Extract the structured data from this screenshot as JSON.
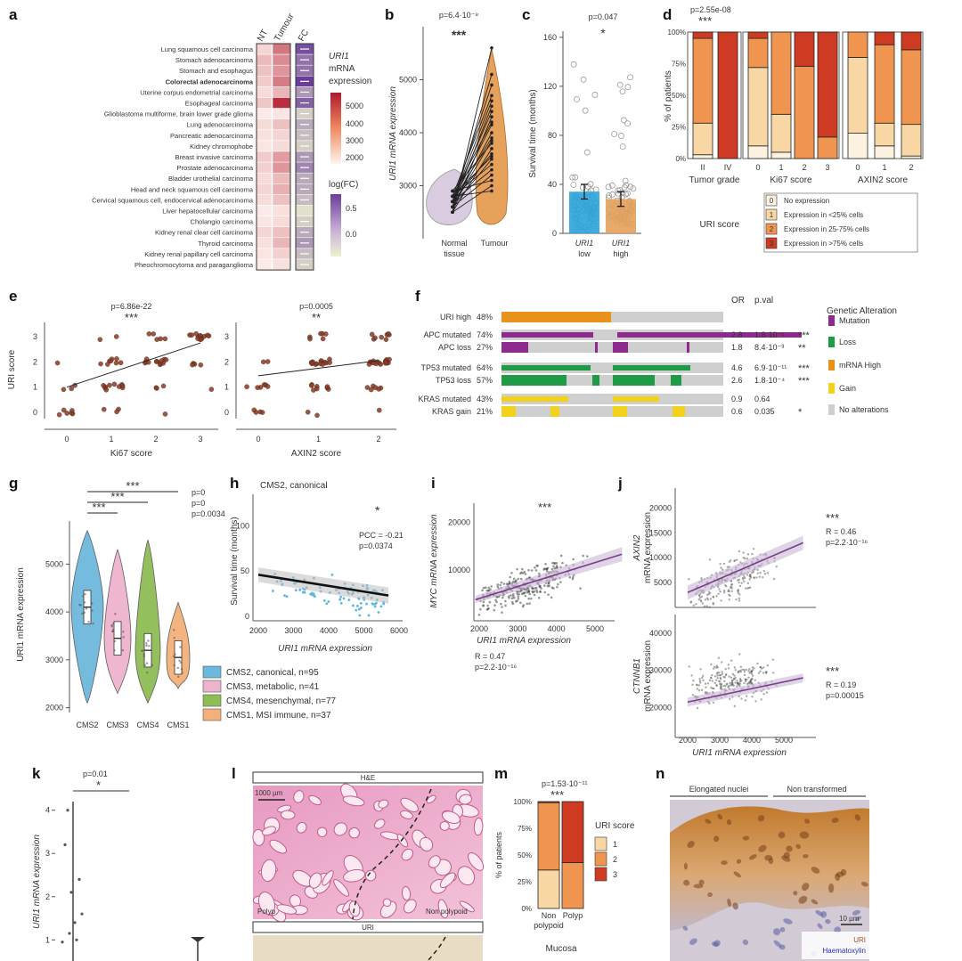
{
  "figure": {
    "colors": {
      "grade0": "#fdf2df",
      "grade1": "#f9d7a4",
      "grade2": "#f0954f",
      "grade3": "#cf3a22",
      "cms2": "#6db8dd",
      "cms3": "#eeb3cd",
      "cms4": "#8fbc55",
      "cms1": "#f4b07a",
      "mutation": "#8e2a8e",
      "loss": "#1f9a47",
      "mrna": "#e8911b",
      "gain": "#f2d21c",
      "none": "#cfcfcf",
      "fit": "#7a3d8a"
    }
  },
  "chart_data": [
    {
      "panel": "a",
      "type": "heatmap",
      "rows": [
        "Lung squamous cell carcinoma",
        "Stomach adenocarcinoma",
        "Stomach and esophagus",
        "Colorectal adenocarcinoma",
        "Uterine corpus endometrial carcinoma",
        "Esophageal carcinoma",
        "Glioblastoma multiforme, brain lower grade glioma",
        "Lung adenocarcinoma",
        "Pancreatic adenocarcinoma",
        "Kidney chromophobe",
        "Breast invasive carcinoma",
        "Prostate adenocarcinoma",
        "Bladder urothelial carcinoma",
        "Head and neck squamous cell carcinoma",
        "Cervical squamous cell, endocervical adenocarcinoma",
        "Liver hepatocellular carcinoma",
        "Cholangio carcinoma",
        "Kidney renal clear cell carcinoma",
        "Thyroid carcinoma",
        "Kidney renal papillary cell carcinoma",
        "Pheochromocytoma and paraganglioma"
      ],
      "columns": [
        "NT",
        "Tumour",
        "FC"
      ],
      "nt": [
        2400,
        2900,
        2800,
        2600,
        2300,
        2700,
        2000,
        2300,
        2200,
        2100,
        2600,
        2500,
        2300,
        2400,
        2300,
        2000,
        2100,
        2400,
        2200,
        2100,
        2000
      ],
      "tumour": [
        4200,
        3800,
        3600,
        4100,
        3000,
        5600,
        2100,
        2800,
        2400,
        2300,
        3500,
        3600,
        2900,
        3100,
        2800,
        2200,
        2300,
        2800,
        3000,
        2500,
        2200
      ],
      "logfc": [
        0.8,
        0.6,
        0.6,
        0.9,
        0.4,
        0.7,
        0.1,
        0.3,
        0.2,
        0.1,
        0.4,
        0.5,
        0.3,
        0.3,
        0.2,
        0.0,
        0.1,
        0.3,
        0.4,
        0.2,
        0.1
      ],
      "legend_title": "URI1 mRNA expression",
      "legend_ticks": [
        "5000",
        "4000",
        "3000",
        "2000"
      ],
      "fc_title": "log(FC)",
      "fc_ticks": [
        "0.5",
        "0.0"
      ]
    },
    {
      "panel": "b",
      "type": "paired-line",
      "pvalue": "p=6.4·10⁻⁸",
      "stars": "***",
      "categories": [
        "Normal tissue",
        "Tumour"
      ],
      "ylabel": "URI1 mRNA expression",
      "yticks": [
        3000,
        4000,
        5000
      ],
      "ylim": [
        2000,
        6000
      ],
      "pairs": [
        [
          2500,
          5600
        ],
        [
          2600,
          5100
        ],
        [
          2700,
          4900
        ],
        [
          2800,
          4700
        ],
        [
          2600,
          4500
        ],
        [
          2700,
          4400
        ],
        [
          2500,
          4300
        ],
        [
          2800,
          4200
        ],
        [
          2600,
          4000
        ],
        [
          2700,
          3900
        ],
        [
          2900,
          3800
        ],
        [
          2500,
          3700
        ],
        [
          2700,
          3600
        ],
        [
          2600,
          3500
        ],
        [
          2800,
          3400
        ],
        [
          2700,
          3300
        ],
        [
          2600,
          3200
        ],
        [
          2900,
          3100
        ],
        [
          2500,
          3000
        ],
        [
          2800,
          2900
        ],
        [
          2700,
          4600
        ],
        [
          2600,
          3850
        ],
        [
          2800,
          3550
        ],
        [
          2700,
          4150
        ]
      ]
    },
    {
      "panel": "c",
      "type": "bar",
      "pvalue": "p=0.047",
      "stars": "*",
      "categories": [
        "URI1 low",
        "URI1 high"
      ],
      "cat_top": [
        "URI1",
        "URI1"
      ],
      "cat_bottom": [
        "low",
        "high"
      ],
      "values": [
        34,
        28
      ],
      "ylabel": "Survival time (months)",
      "yticks": [
        0,
        40,
        80,
        120,
        160
      ],
      "ylim": [
        0,
        165
      ]
    },
    {
      "panel": "d",
      "type": "stacked-bar",
      "pvalue": "p=2.55e-08",
      "stars": "***",
      "ylabel": "% of patients",
      "yticks": [
        "0%",
        "25%",
        "50%",
        "75%",
        "100%"
      ],
      "groups": [
        {
          "name": "Tumor grade",
          "categories": [
            "II",
            "IV"
          ],
          "stacks": [
            [
              3,
              25,
              67,
              5
            ],
            [
              0,
              0,
              0,
              100
            ]
          ]
        },
        {
          "name": "Ki67 score",
          "categories": [
            "0",
            "1",
            "2",
            "3"
          ],
          "stacks": [
            [
              10,
              62,
              23,
              5
            ],
            [
              5,
              30,
              65,
              0
            ],
            [
              0,
              0,
              73,
              27
            ],
            [
              0,
              0,
              17,
              83
            ]
          ]
        },
        {
          "name": "AXIN2 score",
          "categories": [
            "0",
            "1",
            "2"
          ],
          "stacks": [
            [
              20,
              60,
              20,
              0
            ],
            [
              10,
              18,
              62,
              10
            ],
            [
              2,
              25,
              59,
              14
            ]
          ]
        }
      ],
      "legend_title": "URI score",
      "legend": [
        {
          "score": "0",
          "label": "No expression"
        },
        {
          "score": "1",
          "label": "Expression in <25% cells"
        },
        {
          "score": "2",
          "label": "Expression in 25-75% cells"
        },
        {
          "score": "3",
          "label": "Expression in >75% cells"
        }
      ]
    },
    {
      "panel": "e",
      "type": "scatter",
      "plots": [
        {
          "xlabel": "Ki67 score",
          "pvalue": "p=6.86e-22",
          "stars": "***",
          "xticks": [
            0,
            1,
            2,
            3
          ]
        },
        {
          "xlabel": "AXIN2 score",
          "pvalue": "p=0.0005",
          "stars": "**",
          "xticks": [
            0,
            1,
            2
          ]
        }
      ],
      "ylabel": "URI score",
      "yticks": [
        0,
        1,
        2,
        3
      ]
    },
    {
      "panel": "f",
      "type": "oncoprint",
      "header": [
        "OR",
        "p.val"
      ],
      "rows": [
        {
          "label": "URI high",
          "pct": "48%",
          "or": "",
          "pval": "",
          "stars": "",
          "kind": "mrna"
        },
        {
          "label": "APC mutated",
          "pct": "74%",
          "or": "2.8",
          "pval": "1.8·10⁻⁵",
          "stars": "***",
          "kind": "mutation"
        },
        {
          "label": "APC loss",
          "pct": "27%",
          "or": "1.8",
          "pval": "8.4·10⁻³",
          "stars": "**",
          "kind": "mutation"
        },
        {
          "label": "TP53 mutated",
          "pct": "64%",
          "or": "4.6",
          "pval": "6.9·10⁻¹¹",
          "stars": "***",
          "kind": "loss"
        },
        {
          "label": "TP53 loss",
          "pct": "57%",
          "or": "2.6",
          "pval": "1.8·10⁻⁴",
          "stars": "***",
          "kind": "loss"
        },
        {
          "label": "KRAS mutated",
          "pct": "43%",
          "or": "0.9",
          "pval": "0.64",
          "stars": "",
          "kind": "gain"
        },
        {
          "label": "KRAS gain",
          "pct": "21%",
          "or": "0.6",
          "pval": "0.035",
          "stars": "*",
          "kind": "gain"
        }
      ],
      "legend_title": "Genetic Alteration",
      "legend": [
        "Mutation",
        "Loss",
        "mRNA High",
        "Gain",
        "No alterations"
      ]
    },
    {
      "panel": "g",
      "type": "violin",
      "categories": [
        "CMS2",
        "CMS3",
        "CMS4",
        "CMS1"
      ],
      "medians": [
        4100,
        3450,
        3200,
        3050
      ],
      "ylabel": "URI1 mRNA expression",
      "yticks": [
        2000,
        3000,
        4000,
        5000
      ],
      "ylim": [
        1900,
        5900
      ],
      "pvalues": [
        "p=0",
        "p=0",
        "p=0.0034"
      ],
      "stars": [
        "***",
        "***",
        "***"
      ],
      "legend": [
        "CMS2, canonical, n=95",
        "CMS3, metabolic, n=41",
        "CMS4, mesenchymal, n=77",
        "CMS1, MSI immune, n=37"
      ]
    },
    {
      "panel": "h",
      "type": "scatter",
      "title": "CMS2, canonical",
      "xlabel": "URI1 mRNA expression",
      "ylabel": "Survival time (months)",
      "xticks": [
        2000,
        3000,
        4000,
        5000,
        6000
      ],
      "yticks": [
        0,
        50,
        100
      ],
      "stats": "PCC = -0.21",
      "pvalue": "p=0.0374",
      "stars": "*",
      "fit": [
        [
          2000,
          46
        ],
        [
          5700,
          23
        ]
      ]
    },
    {
      "panel": "i",
      "type": "scatter",
      "xlabel": "URI1 mRNA expression",
      "ylabel": "MYC mRNA expression",
      "xticks": [
        2000,
        3000,
        4000,
        5000
      ],
      "yticks": [
        10000,
        20000
      ],
      "stars": "***",
      "stats": "R = 0.47",
      "pvalue": "p=2.2·10⁻¹⁶"
    },
    {
      "panel": "j",
      "type": "scatter",
      "plots": [
        {
          "ylabel": "AXIN2 mRNA expression",
          "ylabel_top": "AXIN2",
          "ylabel_bottom": "mRNA expression",
          "yticks": [
            5000,
            10000,
            15000,
            20000
          ],
          "stars": "***",
          "stats": "R = 0.46",
          "pvalue": "p=2.2·10⁻¹⁶"
        },
        {
          "ylabel": "CTNNB1 mRNA expression",
          "ylabel_top": "CTNNB1",
          "ylabel_bottom": "mRNA expression",
          "yticks": [
            20000,
            30000,
            40000
          ],
          "stars": "***",
          "stats": "R = 0.19",
          "pvalue": "p=0.00015"
        }
      ],
      "xlabel": "URI1 mRNA expression",
      "xticks": [
        2000,
        3000,
        4000,
        5000
      ]
    },
    {
      "panel": "k",
      "type": "scatter",
      "pvalue": "p=0.01",
      "stars": "*",
      "ylabel": "URI1 mRNA expression",
      "yticks": [
        1,
        2,
        3,
        4
      ]
    },
    {
      "panel": "l",
      "type": "image",
      "top_label": "H&E",
      "bottom_label": "URI",
      "scale": "1000 µm",
      "left_region": "Polyp",
      "right_region": "Non polypoid"
    },
    {
      "panel": "m",
      "type": "stacked-bar",
      "pvalue": "p=1.53·10⁻¹¹",
      "stars": "***",
      "categories": [
        "Non polypoid",
        "Polyp"
      ],
      "cat_top": [
        "Non",
        "Polyp"
      ],
      "cat_bottom": [
        "polypoid",
        ""
      ],
      "stacks": [
        [
          36,
          63,
          1
        ],
        [
          0,
          43,
          57
        ]
      ],
      "ylabel": "% of patients",
      "yticks": [
        "0%",
        "25%",
        "50%",
        "75%",
        "100%"
      ],
      "xlabel": "Mucosa",
      "legend_title": "URI score",
      "legend": [
        "1",
        "2",
        "3"
      ]
    },
    {
      "panel": "n",
      "type": "image",
      "left_label": "Elongated nuclei",
      "right_label": "Non transformed",
      "scale": "10 µm",
      "stain1": "URI",
      "stain2": "Haematoxylin"
    }
  ]
}
